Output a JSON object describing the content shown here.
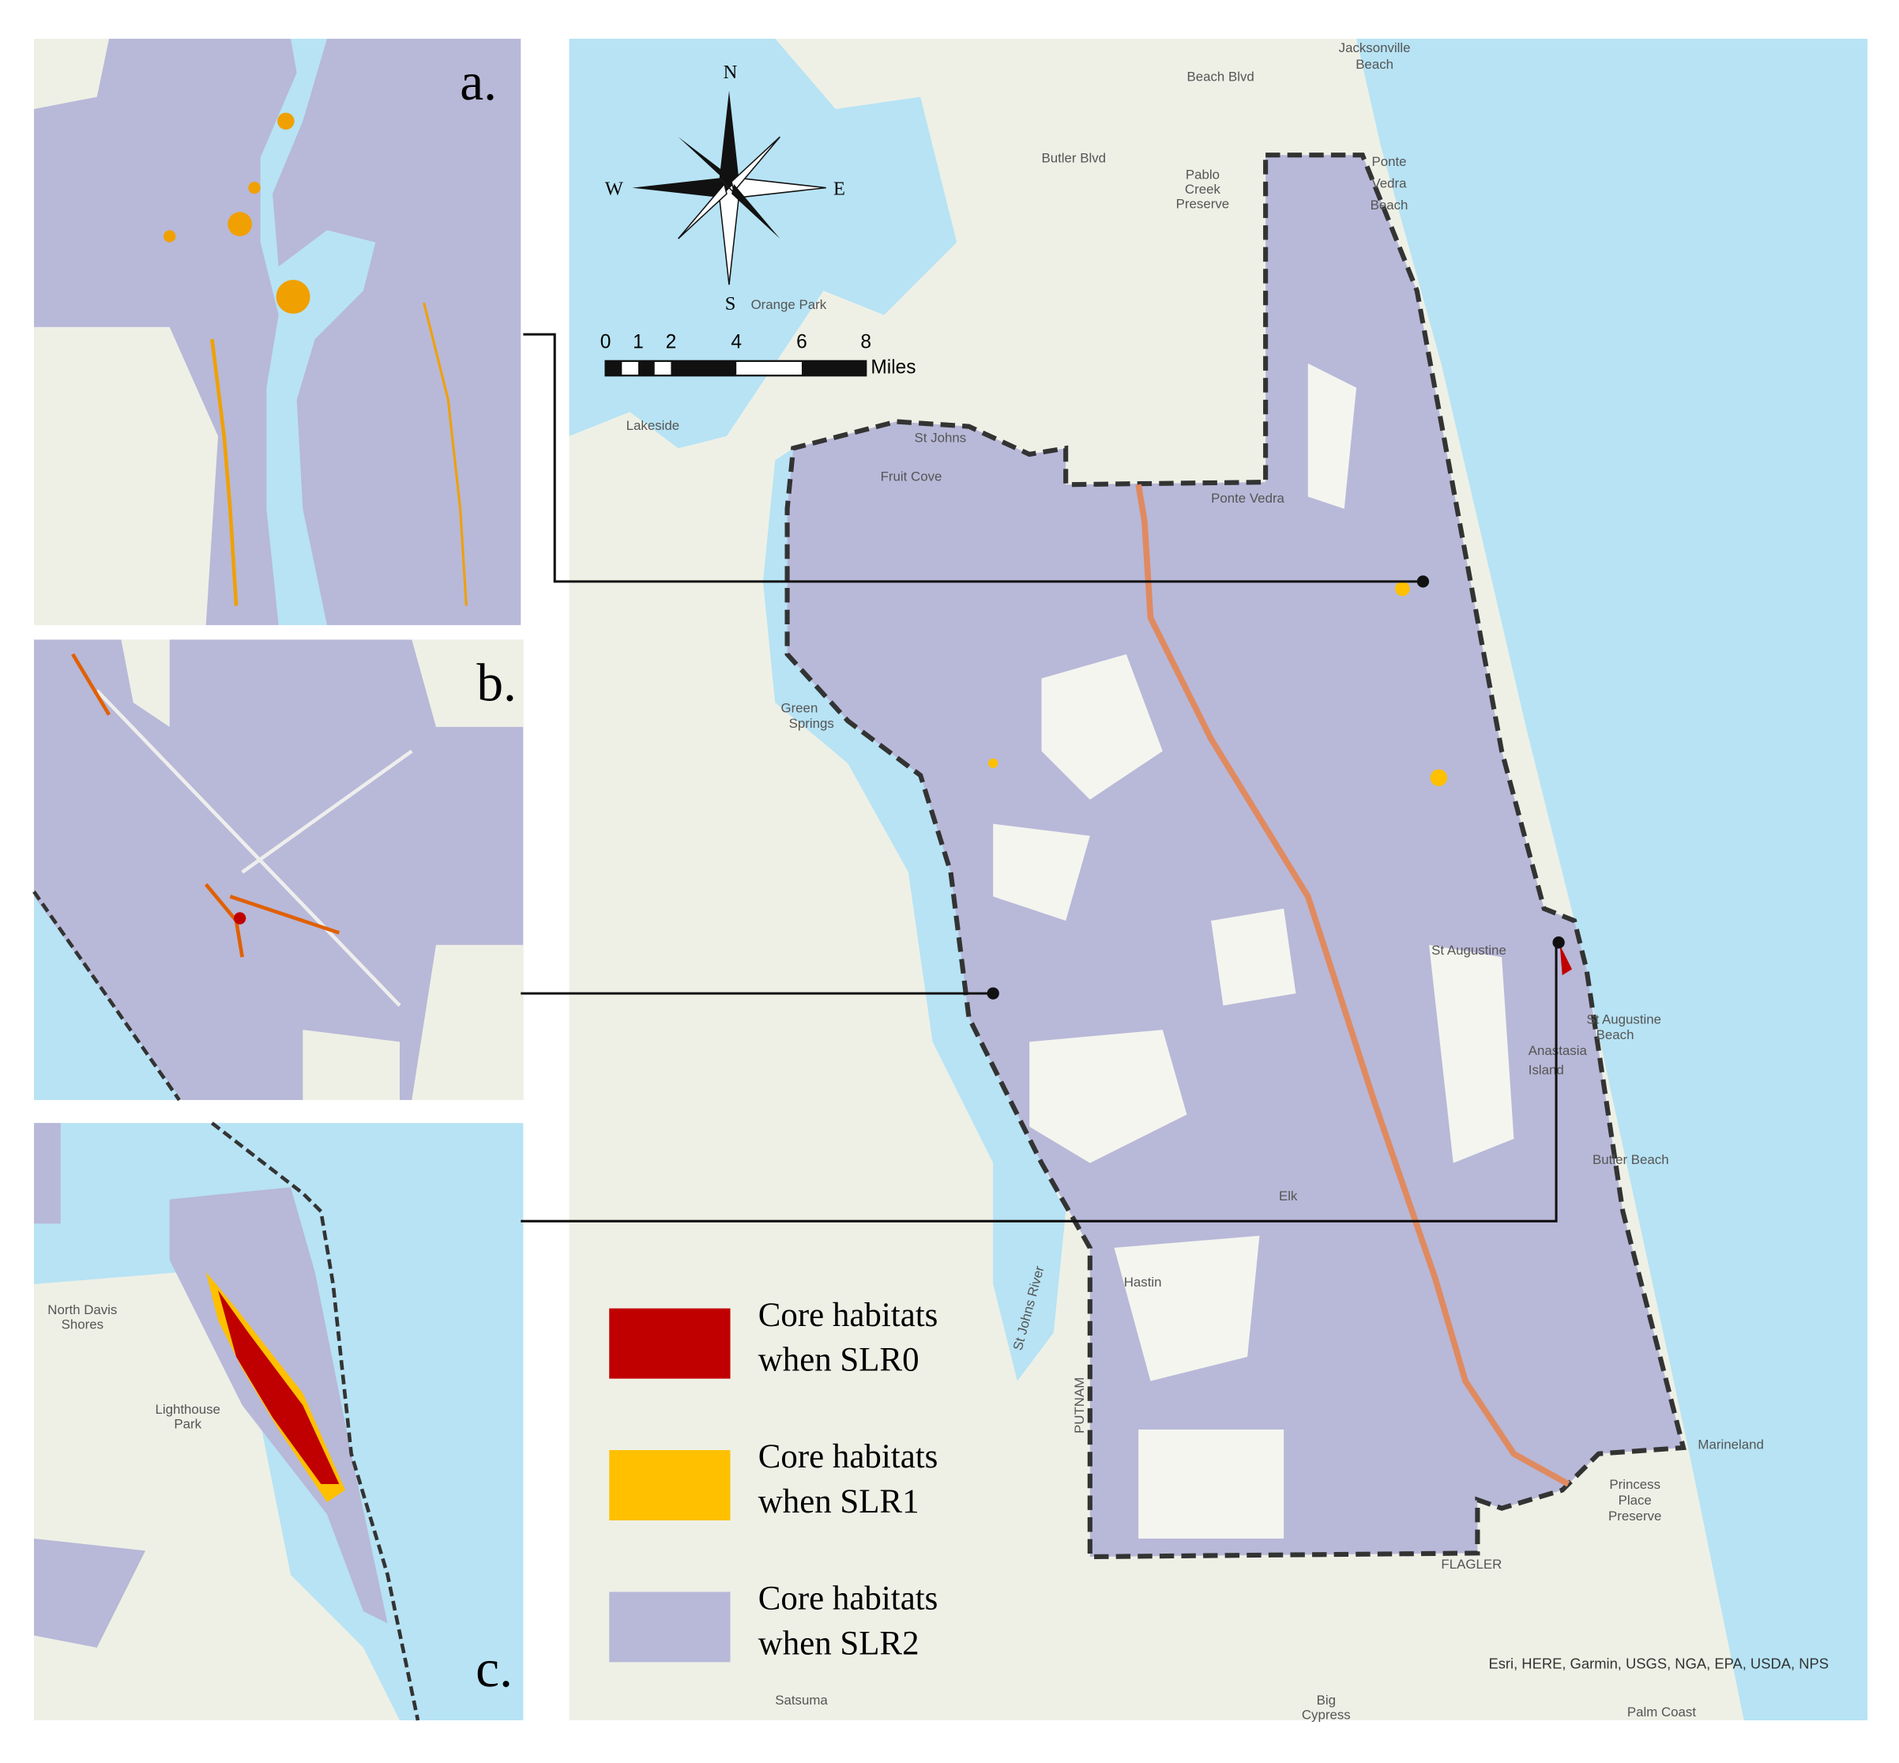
{
  "panels": [
    {
      "label": "a."
    },
    {
      "label": "b."
    },
    {
      "label": "c."
    }
  ],
  "legend": [
    {
      "lines": [
        "Core habitats",
        "when SLR0"
      ],
      "color": "#c00000"
    },
    {
      "lines": [
        "Core habitats",
        "when SLR1"
      ],
      "color": "#ffc000"
    },
    {
      "lines": [
        "Core habitats",
        "when SLR2"
      ],
      "color": "#b8b8d8"
    }
  ],
  "compass": {
    "n": "N",
    "s": "S",
    "e": "E",
    "w": "W"
  },
  "scale_bar": {
    "ticks": [
      "0",
      "1",
      "2",
      "4",
      "6",
      "8"
    ],
    "unit": "Miles"
  },
  "map_labels": [
    "Jacksonville",
    "Beach",
    "Beach Blvd",
    "Butler Blvd",
    "Pablo",
    "Creek",
    "Preserve",
    "Ponte",
    "Vedra",
    "Beach",
    "Lakeside",
    "St Johns",
    "Fruit Cove",
    "Ponte Vedra",
    "Green",
    "Springs",
    "St Augustine",
    "St Augustine",
    "Beach",
    "Anastasia",
    "Island",
    "Butler Beach",
    "Elk",
    "Hastin",
    "PUTNAM",
    "FLAGLER",
    "Marineland",
    "Princess",
    "Place",
    "Preserve",
    "Palm Coast",
    "Big",
    "Cypress",
    "St Johns River",
    "Satsuma",
    "Orange Park",
    "North Davis",
    "Shores",
    "Lighthouse",
    "Park"
  ],
  "attribution": "Esri, HERE, Garmin, USGS, NGA, EPA, USDA, NPS"
}
